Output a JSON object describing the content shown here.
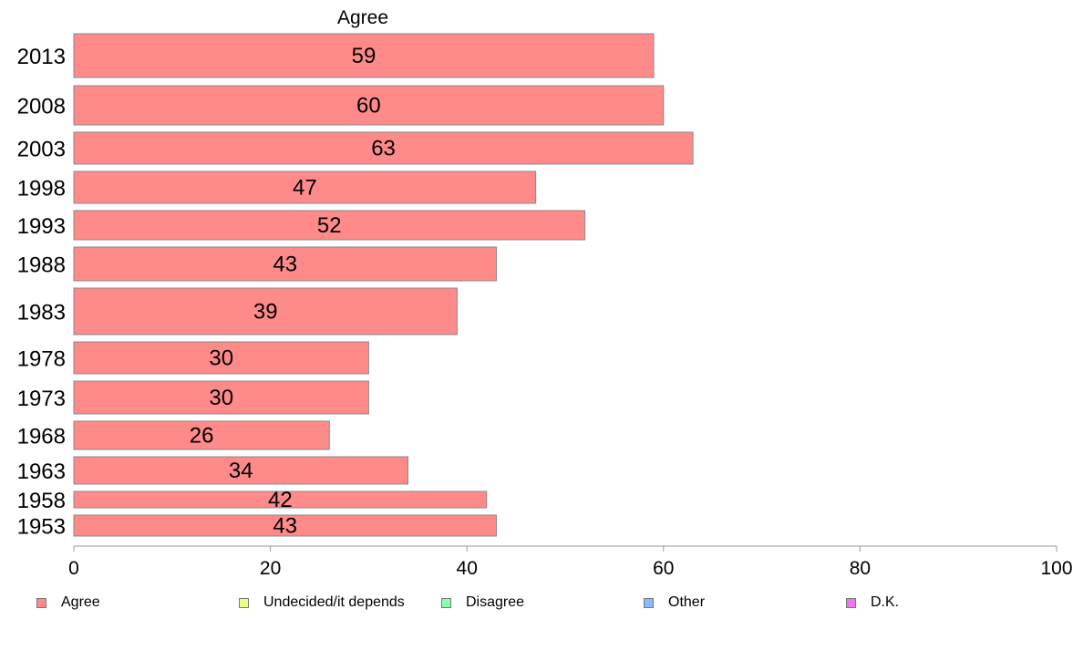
{
  "chart_data": {
    "type": "bar",
    "orientation": "horizontal",
    "title": "Agree",
    "xlabel": "",
    "ylabel": "",
    "xlim": [
      0,
      100
    ],
    "x_ticks": [
      0,
      20,
      40,
      60,
      80,
      100
    ],
    "categories": [
      "2013",
      "2008",
      "2003",
      "1998",
      "1993",
      "1988",
      "1983",
      "1978",
      "1973",
      "1968",
      "1963",
      "1958",
      "1953"
    ],
    "series": [
      {
        "name": "Agree",
        "values": [
          59,
          60,
          63,
          47,
          52,
          43,
          39,
          30,
          30,
          26,
          34,
          42,
          43
        ],
        "color": "#ff8a8a"
      }
    ],
    "legend": {
      "position": "bottom",
      "items": [
        {
          "label": "Agree",
          "color": "#ff8a8a"
        },
        {
          "label": "Undecided/it depends",
          "color": "#eeff88"
        },
        {
          "label": "Disagree",
          "color": "#88ffaa"
        },
        {
          "label": "Other",
          "color": "#88bbff"
        },
        {
          "label": "D.K.",
          "color": "#ee77ee"
        }
      ]
    },
    "grid": false
  }
}
